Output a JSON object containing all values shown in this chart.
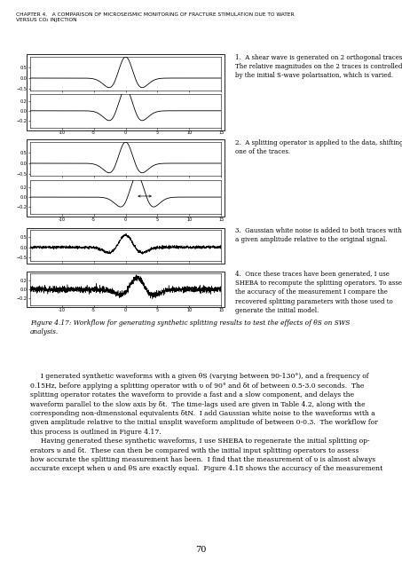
{
  "chapter_header_line1": "CHAPTER 4.   A COMPARISON OF MICROSEISMIC MONITORING OF FRACTURE STIMULATION DUE TO WATER",
  "chapter_header_line2": "VERSUS CO₂ INJECTION",
  "figure_caption": "Figure 4.17: Workflow for generating synthetic splitting results to test the effects of θS on SWS\nanalysis.",
  "body_text": "     I generated synthetic waveforms with a given θS (varying between 90-130°), and a frequency of\n0.15Hz, before applying a splitting operator with υ of 90° and δt of between 0.5-3.0 seconds.  The\nsplitting operator rotates the waveform to provide a fast and a slow component, and delays the\nwaveform parallel to the slow axis by δt.  The time-lags used are given in Table 4.2, along with the\ncorresponding non-dimensional equivalents δtN.  I add Gaussian white noise to the waveforms with a\ngiven amplitude relative to the initial unsplit waveform amplitude of between 0-0.3.  The workflow for\nthis process is outlined in Figure 4.17.\n     Having generated these synthetic waveforms, I use SHEBA to regenerate the initial splitting op-\nerators υ and δt.  These can then be compared with the initial input splitting operators to assess\nhow accurate the splitting measurement has been.  I find that the measurement of υ is almost always\naccurate except when υ and θS are exactly equal.  Figure 4.18 shows the accuracy of the measurement",
  "annotations": [
    "1.  A shear wave is generated on 2 orthogonal traces.\nThe relative magnitudes on the 2 traces is controlled\nby the initial S-wave polarisation, which is varied.",
    "2.  A splitting operator is applied to the data, shifting\none of the traces.",
    "3.  Gaussian white noise is added to both traces with\na given amplitude relative to the original signal.",
    "4.  Once these traces have been generated, I use\nSHEBA to recompute the splitting operators. To assess\nthe accuracy of the measurement I compare the\nrecovered splitting parameters with those used to\ngenerate the initial model."
  ],
  "page_number": "70"
}
